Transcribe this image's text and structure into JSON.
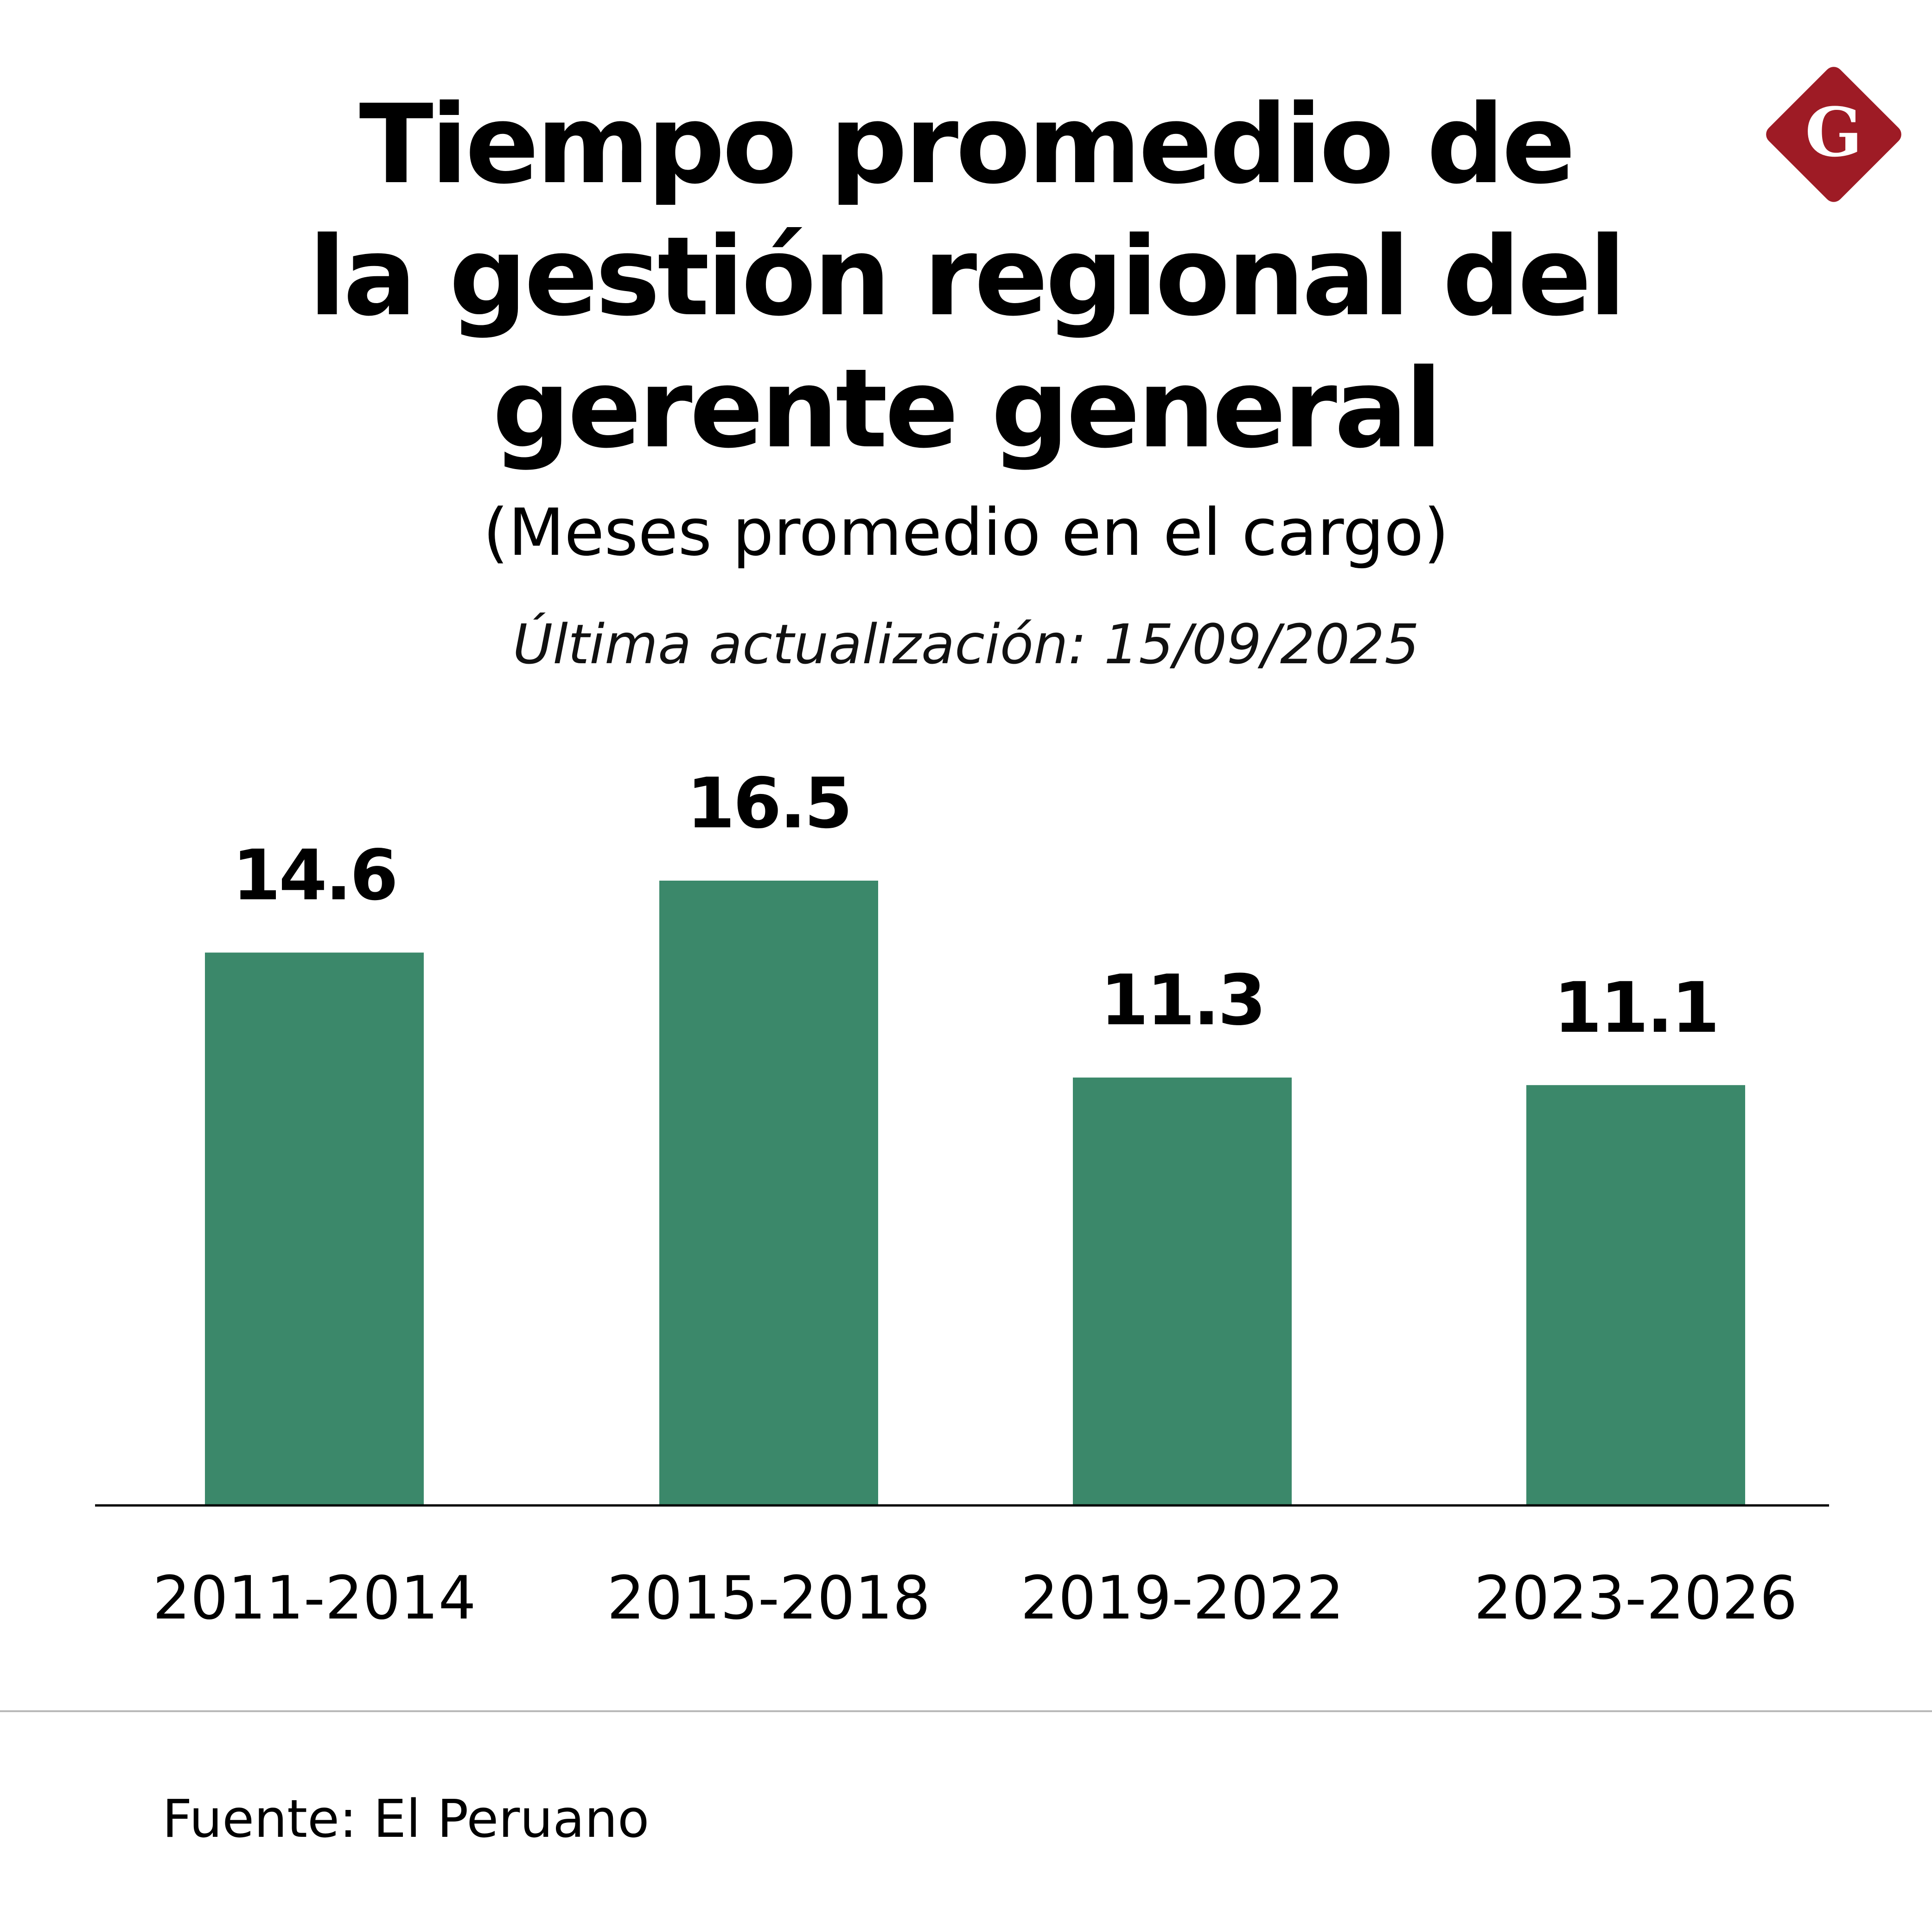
{
  "header": {
    "title_lines": [
      "Tiempo promedio de",
      "la gestión regional del",
      "gerente general"
    ],
    "subtitle": "(Meses promedio en el cargo)",
    "updated": "Última actualización: 15/09/2025"
  },
  "logo": {
    "icon": "gestion-logo-icon",
    "letter": "G",
    "bg_color": "#9e1b25",
    "fg_color": "#ffffff"
  },
  "footer": {
    "source": "Fuente: El Peruano"
  },
  "colors": {
    "bar": "#3b886a",
    "axis": "#000000"
  },
  "chart_data": {
    "type": "bar",
    "title": "Tiempo promedio de la gestión regional del gerente general",
    "subtitle": "(Meses promedio en el cargo)",
    "categories": [
      "2011-2014",
      "2015-2018",
      "2019-2022",
      "2023-2026"
    ],
    "values": [
      14.6,
      16.5,
      11.3,
      11.1
    ],
    "data_labels": [
      "14.6",
      "16.5",
      "11.3",
      "11.1"
    ],
    "xlabel": "",
    "ylabel": "Meses promedio en el cargo",
    "ylim": [
      0,
      16.5
    ],
    "grid": false,
    "legend": "none"
  }
}
